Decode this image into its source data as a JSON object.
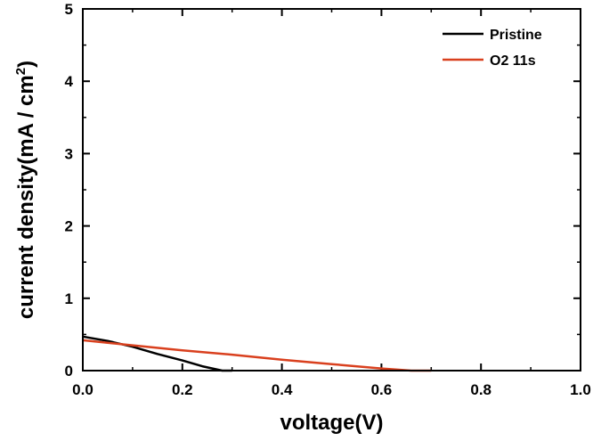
{
  "chart_data": {
    "type": "line",
    "xlabel": "voltage(V)",
    "ylabel": "current density(mA / cm",
    "ylabel_superscript": "2",
    "ylabel_suffix": ")",
    "xlim": [
      0.0,
      1.0
    ],
    "ylim": [
      0,
      5
    ],
    "x_ticks": [
      "0.0",
      "0.2",
      "0.4",
      "0.6",
      "0.8",
      "1.0"
    ],
    "y_ticks": [
      "0",
      "1",
      "2",
      "3",
      "4",
      "5"
    ],
    "legend_position": "top-right",
    "grid": false,
    "series": [
      {
        "name": "Pristine",
        "color": "#000000",
        "points": [
          [
            0.0,
            0.47
          ],
          [
            0.05,
            0.41
          ],
          [
            0.1,
            0.33
          ],
          [
            0.15,
            0.23
          ],
          [
            0.2,
            0.14
          ],
          [
            0.24,
            0.06
          ],
          [
            0.28,
            0.0
          ],
          [
            0.3,
            0.0
          ]
        ]
      },
      {
        "name": "O2 11s",
        "color": "#d9401e",
        "points": [
          [
            0.0,
            0.42
          ],
          [
            0.1,
            0.35
          ],
          [
            0.2,
            0.28
          ],
          [
            0.3,
            0.22
          ],
          [
            0.4,
            0.15
          ],
          [
            0.5,
            0.09
          ],
          [
            0.6,
            0.03
          ],
          [
            0.66,
            0.0
          ],
          [
            0.7,
            0.0
          ]
        ]
      }
    ]
  }
}
